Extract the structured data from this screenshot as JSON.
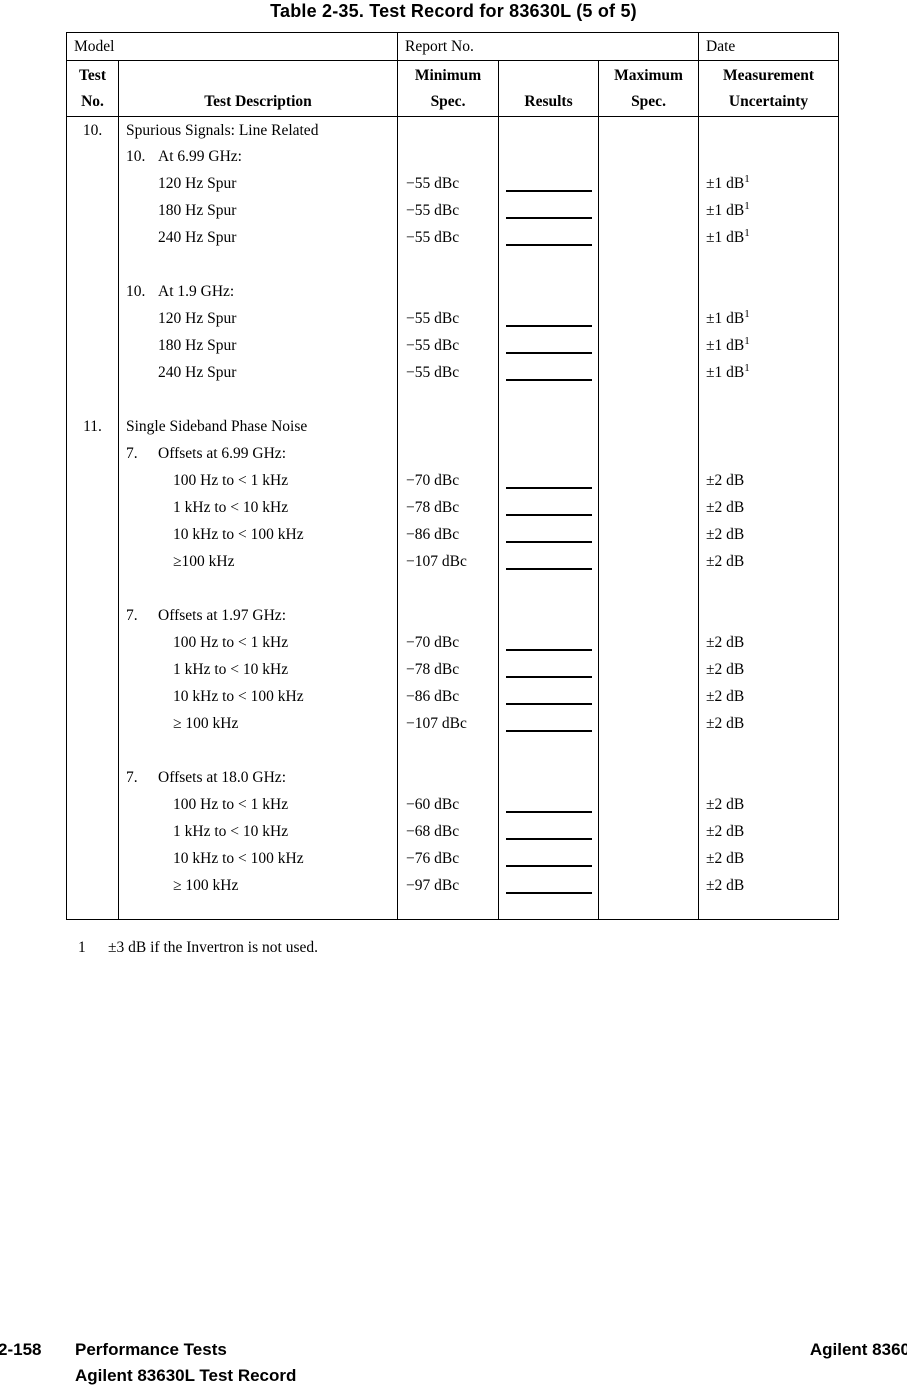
{
  "title": "Table 2-35. Test Record for 83630L (5 of 5)",
  "table": {
    "meta": {
      "model": "Model",
      "report_no": "Report No.",
      "date": "Date"
    },
    "columns": {
      "test_no": [
        "Test",
        "No."
      ],
      "description": [
        "",
        "Test Description"
      ],
      "minimum": [
        "Minimum",
        "Spec."
      ],
      "results": [
        "",
        "Results"
      ],
      "maximum": [
        "Maximum",
        "Spec."
      ],
      "uncertainty": [
        "Measurement",
        "Uncertainty"
      ]
    },
    "rows": [
      {
        "style": "main",
        "no": "10.",
        "desc": "Spurious Signals: Line Related"
      },
      {
        "style": "sub",
        "sub_no": "10.",
        "desc": "At 6.99 GHz:"
      },
      {
        "style": "item",
        "desc": "120 Hz Spur",
        "min": "−55 dBc",
        "line": true,
        "unc": "±1 dB",
        "sup": "1"
      },
      {
        "style": "item",
        "desc": "180 Hz Spur",
        "min": "−55 dBc",
        "line": true,
        "unc": "±1 dB",
        "sup": "1"
      },
      {
        "style": "item",
        "desc": "240 Hz Spur",
        "min": "−55 dBc",
        "line": true,
        "unc": "±1 dB",
        "sup": "1"
      },
      {
        "style": "spacer"
      },
      {
        "style": "sub",
        "sub_no": "10.",
        "desc": "At 1.9 GHz:"
      },
      {
        "style": "item",
        "desc": "120 Hz Spur",
        "min": "−55 dBc",
        "line": true,
        "unc": "±1 dB",
        "sup": "1"
      },
      {
        "style": "item",
        "desc": "180 Hz Spur",
        "min": "−55 dBc",
        "line": true,
        "unc": "±1 dB",
        "sup": "1"
      },
      {
        "style": "item",
        "desc": "240 Hz Spur",
        "min": "−55 dBc",
        "line": true,
        "unc": "±1 dB",
        "sup": "1"
      },
      {
        "style": "spacer"
      },
      {
        "style": "main",
        "no": "11.",
        "desc": "Single Sideband Phase Noise"
      },
      {
        "style": "sub",
        "sub_no": "7.",
        "desc": "Offsets at 6.99 GHz:"
      },
      {
        "style": "item2",
        "desc": "100 Hz to < 1 kHz",
        "min": "−70 dBc",
        "line": true,
        "unc": "±2 dB"
      },
      {
        "style": "item2",
        "desc": "1 kHz to < 10 kHz",
        "min": "−78 dBc",
        "line": true,
        "unc": "±2 dB"
      },
      {
        "style": "item2",
        "desc": "10 kHz to < 100 kHz",
        "min": "−86 dBc",
        "line": true,
        "unc": "±2 dB"
      },
      {
        "style": "item2",
        "desc": "≥100 kHz",
        "min": "−107 dBc",
        "line": true,
        "unc": "±2 dB"
      },
      {
        "style": "spacer"
      },
      {
        "style": "sub",
        "sub_no": "7.",
        "desc": "Offsets at 1.97 GHz:"
      },
      {
        "style": "item2",
        "desc": "100 Hz to < 1 kHz",
        "min": "−70 dBc",
        "line": true,
        "unc": "±2 dB"
      },
      {
        "style": "item2",
        "desc": "1 kHz to < 10 kHz",
        "min": "−78 dBc",
        "line": true,
        "unc": "±2 dB"
      },
      {
        "style": "item2",
        "desc": "10 kHz to < 100 kHz",
        "min": "−86 dBc",
        "line": true,
        "unc": "±2 dB"
      },
      {
        "style": "item2",
        "desc": "≥ 100 kHz",
        "min": "−107 dBc",
        "line": true,
        "unc": "±2 dB"
      },
      {
        "style": "spacer"
      },
      {
        "style": "sub",
        "sub_no": "7.",
        "desc": "Offsets at 18.0 GHz:"
      },
      {
        "style": "item2",
        "desc": "100 Hz to < 1 kHz",
        "min": "−60 dBc",
        "line": true,
        "unc": "±2 dB"
      },
      {
        "style": "item2",
        "desc": "1 kHz to < 10 kHz",
        "min": "−68 dBc",
        "line": true,
        "unc": "±2 dB"
      },
      {
        "style": "item2",
        "desc": "10 kHz to < 100 kHz",
        "min": "−76 dBc",
        "line": true,
        "unc": "±2 dB"
      },
      {
        "style": "item2",
        "desc": "≥ 100 kHz",
        "min": "−97 dBc",
        "line": true,
        "unc": "±2 dB"
      },
      {
        "style": "pad"
      }
    ]
  },
  "footnote": {
    "marker": "1",
    "text": "±3 dB if the Invertron is not used."
  },
  "footer": {
    "page_number": "2-158",
    "left_line1": "Performance Tests",
    "left_line2": "Agilent 83630L Test Record",
    "right": "Agilent 8360"
  }
}
